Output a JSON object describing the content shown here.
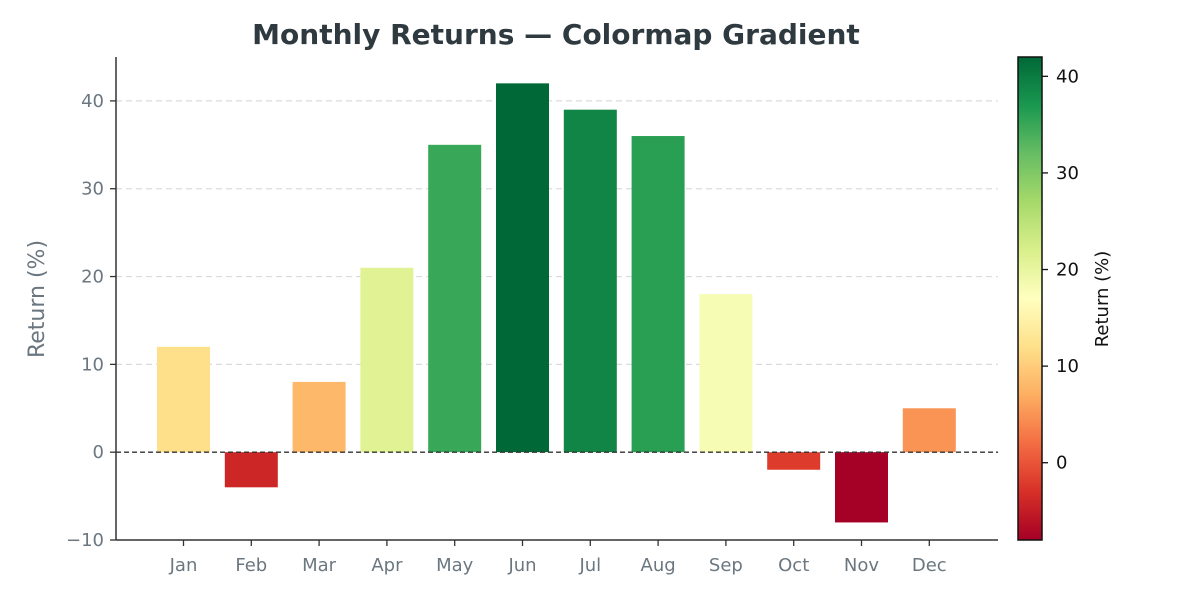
{
  "chart_data": {
    "type": "bar",
    "title": "Monthly Returns — Colormap Gradient",
    "xlabel": "",
    "ylabel": "Return (%)",
    "categories": [
      "Jan",
      "Feb",
      "Mar",
      "Apr",
      "May",
      "Jun",
      "Jul",
      "Aug",
      "Sep",
      "Oct",
      "Nov",
      "Dec"
    ],
    "values": [
      12,
      -4,
      8,
      21,
      35,
      42,
      39,
      36,
      18,
      -2,
      -8,
      5
    ],
    "ylim": [
      -10,
      45
    ],
    "yticks": [
      -10,
      0,
      10,
      20,
      30,
      40
    ],
    "ytick_labels": [
      "−10",
      "0",
      "10",
      "20",
      "30",
      "40"
    ],
    "grid": "y dashed",
    "zero_line": "dashed",
    "colormap": "RdYlGn",
    "colorbar": {
      "label": "Return (%)",
      "range": [
        -8,
        42
      ],
      "ticks": [
        0,
        10,
        20,
        30,
        40
      ],
      "tick_labels": [
        "0",
        "10",
        "20",
        "30",
        "40"
      ],
      "placement": "right"
    },
    "colors": {
      "title": "#2e3a3f",
      "text": "#6b7780",
      "grid": "#d9dcde",
      "zero_line": "#333333"
    }
  }
}
